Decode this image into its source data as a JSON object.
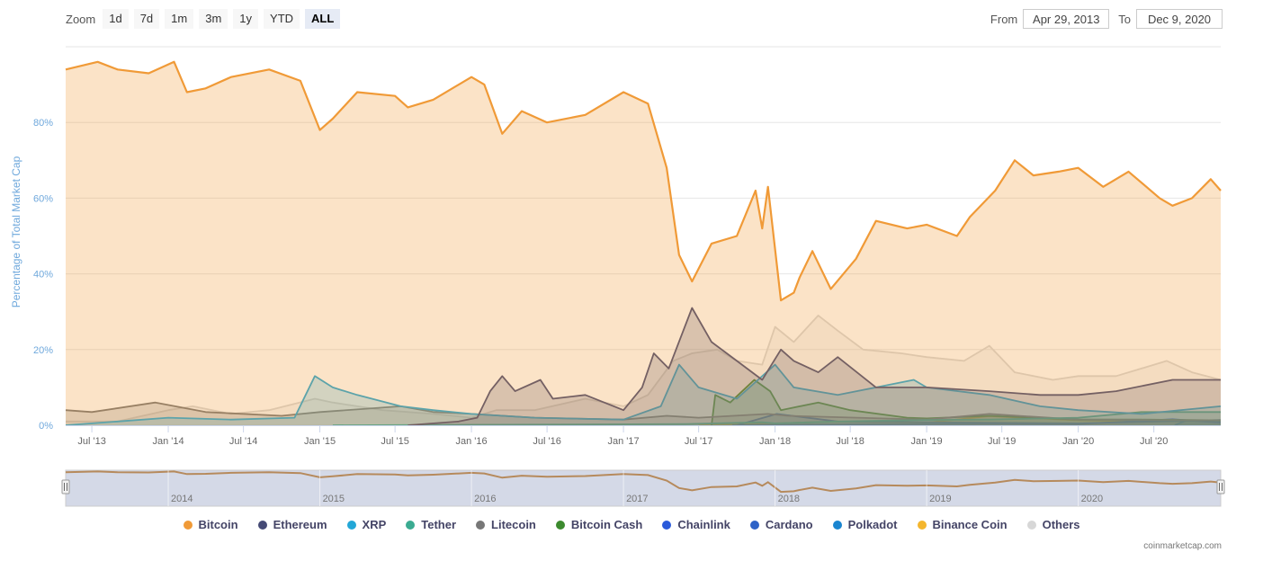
{
  "toolbar": {
    "zoom_label": "Zoom",
    "buttons": [
      "1d",
      "7d",
      "1m",
      "3m",
      "1y",
      "YTD",
      "ALL"
    ],
    "active": "ALL",
    "from_label": "From",
    "from_value": "Apr 29, 2013",
    "to_label": "To",
    "to_value": "Dec 9, 2020"
  },
  "credit": "coinmarketcap.com",
  "chart_data": {
    "type": "area",
    "ylabel": "Percentage of Total Market Cap",
    "ylim": [
      0,
      100
    ],
    "yticks": [
      "0%",
      "20%",
      "40%",
      "60%",
      "80%"
    ],
    "xlim": [
      "2013-04-29",
      "2020-12-09"
    ],
    "xticks": [
      "Jul '13",
      "Jan '14",
      "Jul '14",
      "Jan '15",
      "Jul '15",
      "Jan '16",
      "Jul '16",
      "Jan '17",
      "Jul '17",
      "Jan '18",
      "Jul '18",
      "Jan '19",
      "Jul '19",
      "Jan '20",
      "Jul '20"
    ],
    "navigator_labels": [
      "2014",
      "2015",
      "2016",
      "2017",
      "2018",
      "2019",
      "2020"
    ],
    "grid": true,
    "series": [
      {
        "name": "Others",
        "color": "#d7d7d7",
        "points": [
          [
            "2013-04-29",
            1
          ],
          [
            "2013-09-01",
            1
          ],
          [
            "2014-01-01",
            4
          ],
          [
            "2014-03-01",
            5
          ],
          [
            "2014-06-01",
            3
          ],
          [
            "2014-09-01",
            4
          ],
          [
            "2014-12-20",
            7
          ],
          [
            "2015-02-01",
            6
          ],
          [
            "2015-06-01",
            4
          ],
          [
            "2015-10-01",
            3
          ],
          [
            "2016-01-01",
            2
          ],
          [
            "2016-03-01",
            4
          ],
          [
            "2016-06-01",
            4
          ],
          [
            "2016-10-01",
            7
          ],
          [
            "2017-01-01",
            5
          ],
          [
            "2017-03-01",
            8
          ],
          [
            "2017-05-01",
            17
          ],
          [
            "2017-06-15",
            19
          ],
          [
            "2017-08-15",
            20
          ],
          [
            "2017-10-01",
            17
          ],
          [
            "2017-12-01",
            16
          ],
          [
            "2018-01-01",
            26
          ],
          [
            "2018-02-15",
            22
          ],
          [
            "2018-04-15",
            29
          ],
          [
            "2018-06-01",
            25
          ],
          [
            "2018-08-01",
            20
          ],
          [
            "2018-11-01",
            19
          ],
          [
            "2019-01-01",
            18
          ],
          [
            "2019-04-01",
            17
          ],
          [
            "2019-06-01",
            21
          ],
          [
            "2019-08-01",
            14
          ],
          [
            "2019-11-01",
            12
          ],
          [
            "2020-01-01",
            13
          ],
          [
            "2020-04-01",
            13
          ],
          [
            "2020-06-01",
            15
          ],
          [
            "2020-08-01",
            17
          ],
          [
            "2020-10-01",
            14
          ],
          [
            "2020-12-09",
            12
          ]
        ]
      },
      {
        "name": "Binance Coin",
        "color": "#f4b62e",
        "points": [
          [
            "2017-07-01",
            0
          ],
          [
            "2018-01-01",
            0.5
          ],
          [
            "2018-06-01",
            1
          ],
          [
            "2019-01-01",
            0.7
          ],
          [
            "2019-06-01",
            2.4
          ],
          [
            "2020-01-01",
            1.3
          ],
          [
            "2020-06-01",
            1
          ],
          [
            "2020-12-09",
            1.2
          ]
        ]
      },
      {
        "name": "Polkadot",
        "color": "#1a85d0",
        "points": [
          [
            "2020-08-20",
            0
          ],
          [
            "2020-09-15",
            1.2
          ],
          [
            "2020-12-09",
            1.0
          ]
        ]
      },
      {
        "name": "Cardano",
        "color": "#2d62c7",
        "points": [
          [
            "2017-10-01",
            0
          ],
          [
            "2017-12-20",
            2.5
          ],
          [
            "2018-01-05",
            3
          ],
          [
            "2018-06-01",
            1
          ],
          [
            "2019-01-01",
            0.8
          ],
          [
            "2020-01-01",
            0.5
          ],
          [
            "2020-12-09",
            1.4
          ]
        ]
      },
      {
        "name": "Chainlink",
        "color": "#2a5ada",
        "points": [
          [
            "2017-09-20",
            0
          ],
          [
            "2018-01-01",
            0.1
          ],
          [
            "2019-06-01",
            0.4
          ],
          [
            "2020-01-01",
            0.3
          ],
          [
            "2020-08-15",
            1.6
          ],
          [
            "2020-12-09",
            0.7
          ]
        ]
      },
      {
        "name": "Bitcoin Cash",
        "color": "#3c8a2e",
        "points": [
          [
            "2017-08-01",
            0
          ],
          [
            "2017-08-10",
            8
          ],
          [
            "2017-09-15",
            6
          ],
          [
            "2017-11-12",
            12
          ],
          [
            "2017-12-20",
            9
          ],
          [
            "2018-01-15",
            4
          ],
          [
            "2018-04-15",
            6
          ],
          [
            "2018-07-01",
            4
          ],
          [
            "2018-11-15",
            2
          ],
          [
            "2019-01-01",
            1.8
          ],
          [
            "2019-06-01",
            2.5
          ],
          [
            "2020-01-01",
            1.5
          ],
          [
            "2020-06-01",
            1.5
          ],
          [
            "2020-12-09",
            1.3
          ]
        ]
      },
      {
        "name": "Litecoin",
        "color": "#777777",
        "points": [
          [
            "2013-04-29",
            4
          ],
          [
            "2013-07-01",
            3.5
          ],
          [
            "2013-12-01",
            6
          ],
          [
            "2014-04-01",
            3.5
          ],
          [
            "2014-10-01",
            2.5
          ],
          [
            "2015-01-01",
            3.5
          ],
          [
            "2015-07-15",
            5
          ],
          [
            "2015-10-01",
            3.5
          ],
          [
            "2016-01-01",
            3
          ],
          [
            "2016-06-01",
            2
          ],
          [
            "2017-01-01",
            1.5
          ],
          [
            "2017-04-15",
            2.5
          ],
          [
            "2017-07-01",
            2
          ],
          [
            "2017-12-15",
            3
          ],
          [
            "2018-02-01",
            2.5
          ],
          [
            "2019-01-01",
            1.5
          ],
          [
            "2019-06-01",
            3
          ],
          [
            "2020-01-01",
            1.5
          ],
          [
            "2020-12-09",
            1.3
          ]
        ]
      },
      {
        "name": "Tether",
        "color": "#3bab91",
        "points": [
          [
            "2015-02-01",
            0
          ],
          [
            "2017-06-01",
            0.3
          ],
          [
            "2017-12-01",
            0.8
          ],
          [
            "2018-01-01",
            0.5
          ],
          [
            "2018-06-01",
            1
          ],
          [
            "2019-01-01",
            1.4
          ],
          [
            "2019-06-01",
            1.5
          ],
          [
            "2020-01-01",
            2
          ],
          [
            "2020-06-01",
            3.5
          ],
          [
            "2020-12-09",
            3.5
          ]
        ]
      },
      {
        "name": "XRP",
        "color": "#23a7d7",
        "points": [
          [
            "2013-04-29",
            0
          ],
          [
            "2013-09-01",
            1
          ],
          [
            "2014-01-01",
            2
          ],
          [
            "2014-06-01",
            1.5
          ],
          [
            "2014-11-01",
            2
          ],
          [
            "2014-12-20",
            13
          ],
          [
            "2015-02-01",
            10
          ],
          [
            "2015-04-01",
            8
          ],
          [
            "2015-07-15",
            5
          ],
          [
            "2015-10-01",
            4
          ],
          [
            "2016-01-01",
            3
          ],
          [
            "2016-06-01",
            2
          ],
          [
            "2017-01-01",
            1.5
          ],
          [
            "2017-04-01",
            5
          ],
          [
            "2017-05-15",
            16
          ],
          [
            "2017-07-01",
            10
          ],
          [
            "2017-10-01",
            7
          ],
          [
            "2018-01-01",
            16
          ],
          [
            "2018-02-15",
            10
          ],
          [
            "2018-06-01",
            8
          ],
          [
            "2018-09-01",
            10
          ],
          [
            "2018-12-01",
            12
          ],
          [
            "2019-01-01",
            10
          ],
          [
            "2019-06-01",
            8
          ],
          [
            "2019-10-01",
            5
          ],
          [
            "2020-01-01",
            4
          ],
          [
            "2020-06-01",
            3
          ],
          [
            "2020-12-09",
            5
          ]
        ]
      },
      {
        "name": "Ethereum",
        "color": "#454a75",
        "points": [
          [
            "2015-08-01",
            0
          ],
          [
            "2015-12-01",
            1
          ],
          [
            "2016-01-15",
            2
          ],
          [
            "2016-02-15",
            9
          ],
          [
            "2016-03-15",
            13
          ],
          [
            "2016-04-15",
            9
          ],
          [
            "2016-06-15",
            12
          ],
          [
            "2016-07-15",
            7
          ],
          [
            "2016-10-01",
            8
          ],
          [
            "2017-01-01",
            4
          ],
          [
            "2017-02-15",
            10
          ],
          [
            "2017-03-15",
            19
          ],
          [
            "2017-04-20",
            15
          ],
          [
            "2017-06-15",
            31
          ],
          [
            "2017-08-01",
            22
          ],
          [
            "2017-10-01",
            17
          ],
          [
            "2017-12-01",
            12
          ],
          [
            "2018-01-15",
            20
          ],
          [
            "2018-02-15",
            17
          ],
          [
            "2018-04-15",
            14
          ],
          [
            "2018-06-01",
            18
          ],
          [
            "2018-09-01",
            10
          ],
          [
            "2019-01-01",
            10
          ],
          [
            "2019-06-01",
            9
          ],
          [
            "2019-10-01",
            8
          ],
          [
            "2020-01-01",
            8
          ],
          [
            "2020-04-01",
            9
          ],
          [
            "2020-08-15",
            12
          ],
          [
            "2020-12-09",
            12
          ]
        ]
      },
      {
        "name": "Bitcoin",
        "color": "#f09a37",
        "points": [
          [
            "2013-04-29",
            94
          ],
          [
            "2013-07-15",
            96
          ],
          [
            "2013-09-01",
            94
          ],
          [
            "2013-11-15",
            93
          ],
          [
            "2014-01-15",
            96
          ],
          [
            "2014-02-15",
            88
          ],
          [
            "2014-04-01",
            89
          ],
          [
            "2014-06-01",
            92
          ],
          [
            "2014-09-01",
            94
          ],
          [
            "2014-11-15",
            91
          ],
          [
            "2015-01-01",
            78
          ],
          [
            "2015-02-01",
            81
          ],
          [
            "2015-04-01",
            88
          ],
          [
            "2015-07-01",
            87
          ],
          [
            "2015-08-01",
            84
          ],
          [
            "2015-10-01",
            86
          ],
          [
            "2016-01-01",
            92
          ],
          [
            "2016-02-01",
            90
          ],
          [
            "2016-03-15",
            77
          ],
          [
            "2016-05-01",
            83
          ],
          [
            "2016-07-01",
            80
          ],
          [
            "2016-10-01",
            82
          ],
          [
            "2017-01-01",
            88
          ],
          [
            "2017-03-01",
            85
          ],
          [
            "2017-04-15",
            68
          ],
          [
            "2017-05-15",
            45
          ],
          [
            "2017-06-15",
            38
          ],
          [
            "2017-08-01",
            48
          ],
          [
            "2017-10-01",
            50
          ],
          [
            "2017-11-15",
            62
          ],
          [
            "2017-12-01",
            52
          ],
          [
            "2017-12-15",
            63
          ],
          [
            "2018-01-15",
            33
          ],
          [
            "2018-02-15",
            35
          ],
          [
            "2018-03-01",
            39
          ],
          [
            "2018-04-01",
            46
          ],
          [
            "2018-05-15",
            36
          ],
          [
            "2018-07-15",
            44
          ],
          [
            "2018-09-01",
            54
          ],
          [
            "2018-11-15",
            52
          ],
          [
            "2019-01-01",
            53
          ],
          [
            "2019-03-15",
            50
          ],
          [
            "2019-04-15",
            55
          ],
          [
            "2019-06-15",
            62
          ],
          [
            "2019-08-01",
            70
          ],
          [
            "2019-09-15",
            66
          ],
          [
            "2019-11-15",
            67
          ],
          [
            "2020-01-01",
            68
          ],
          [
            "2020-03-01",
            63
          ],
          [
            "2020-05-01",
            67
          ],
          [
            "2020-07-15",
            60
          ],
          [
            "2020-08-15",
            58
          ],
          [
            "2020-10-01",
            60
          ],
          [
            "2020-11-15",
            65
          ],
          [
            "2020-12-09",
            62
          ]
        ]
      }
    ],
    "legend": [
      "Bitcoin",
      "Ethereum",
      "XRP",
      "Tether",
      "Litecoin",
      "Bitcoin Cash",
      "Chainlink",
      "Cardano",
      "Polkadot",
      "Binance Coin",
      "Others"
    ]
  }
}
